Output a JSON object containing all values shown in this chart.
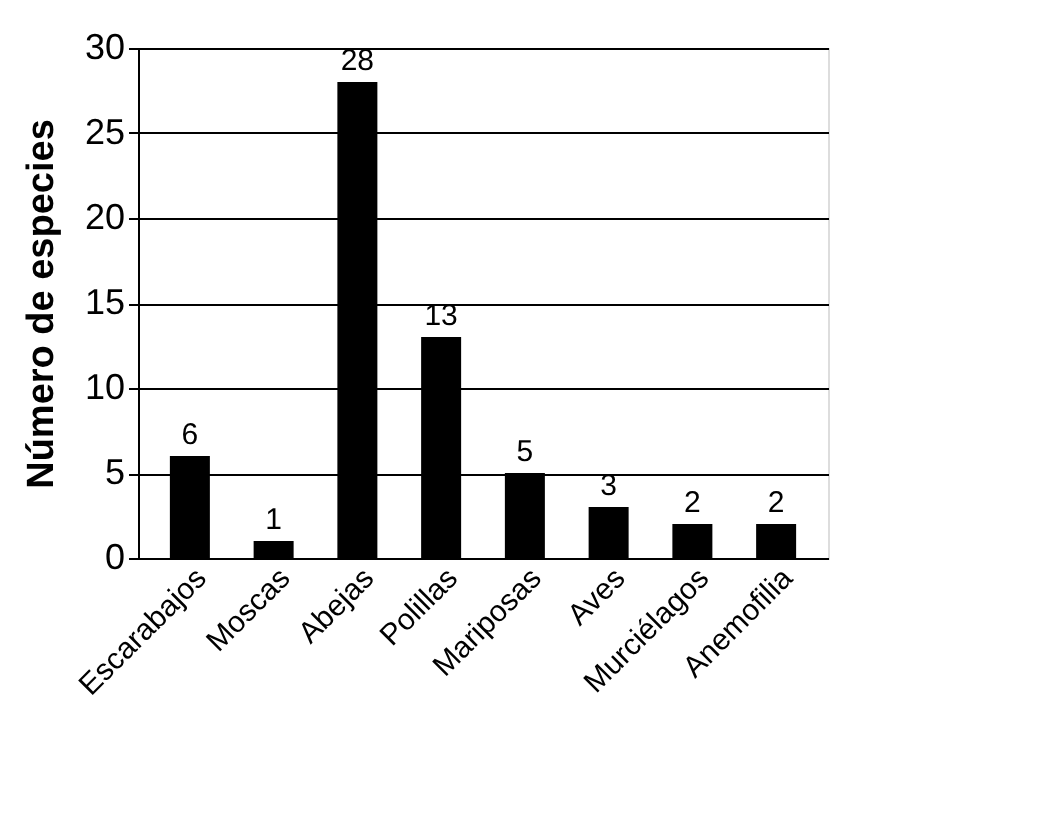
{
  "chart_data": {
    "type": "bar",
    "ylabel": "Número de especies",
    "categories": [
      "Escarabajos",
      "Moscas",
      "Abejas",
      "Polillas",
      "Mariposas",
      "Aves",
      "Murciélagos",
      "Anemofilia"
    ],
    "values": [
      6,
      1,
      28,
      13,
      5,
      3,
      2,
      2
    ],
    "color": "#000000",
    "ylim": [
      0,
      30
    ],
    "yticks": [
      0,
      5,
      10,
      15,
      20,
      25,
      30
    ],
    "grid": "y",
    "data_labels": true
  }
}
